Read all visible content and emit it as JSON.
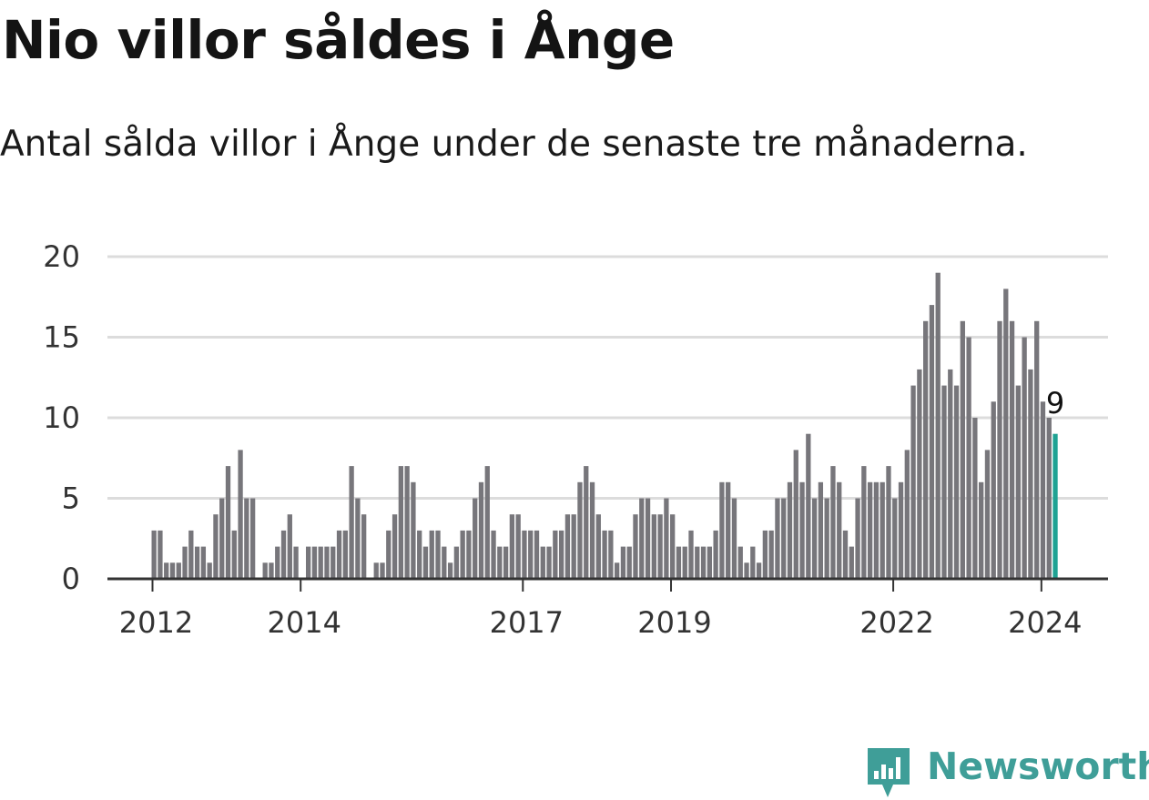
{
  "title": "Nio villor såldes i Ånge",
  "subtitle": "Antal sålda villor i Ånge under de senaste tre månaderna.",
  "brand": {
    "name": "Newsworthy",
    "color": "#3f9e98",
    "icon": "newsworthy-logo-icon"
  },
  "colors": {
    "bar": "#77767b",
    "highlight": "#1fa293",
    "grid": "#dcdcdc",
    "axis": "#333333"
  },
  "chart_data": {
    "type": "bar",
    "x_tick_labels": [
      "2012",
      "2014",
      "2017",
      "2019",
      "2022",
      "2024"
    ],
    "y_ticks": [
      0,
      5,
      10,
      15,
      20
    ],
    "ylim": [
      0,
      20
    ],
    "grid": true,
    "highlight_label": "9",
    "series": [
      {
        "values": [
          3,
          3,
          1,
          1,
          1,
          2,
          3,
          2,
          2,
          1,
          4,
          5,
          7,
          3,
          8,
          5,
          5,
          0,
          1,
          1,
          2,
          3,
          4,
          2,
          0,
          2,
          2,
          2,
          2,
          2,
          3,
          3,
          7,
          5,
          4,
          0,
          1,
          1,
          3,
          4,
          7,
          7,
          6,
          3,
          2,
          3,
          3,
          2,
          1,
          2,
          3,
          3,
          5,
          6,
          7,
          3,
          2,
          2,
          4,
          4,
          3,
          3,
          3,
          2,
          2,
          3,
          3,
          4,
          4,
          6,
          7,
          6,
          4,
          3,
          3,
          1,
          2,
          2,
          4,
          5,
          5,
          4,
          4,
          5,
          4,
          2,
          2,
          3,
          2,
          2,
          2,
          3,
          6,
          6,
          5,
          2,
          1,
          2,
          1,
          3,
          3,
          5,
          5,
          6,
          8,
          6,
          9,
          5,
          6,
          5,
          7,
          6,
          3,
          2,
          5,
          7,
          6,
          6,
          6,
          7,
          5,
          6,
          8,
          12,
          13,
          16,
          17,
          19,
          12,
          13,
          12,
          16,
          15,
          10,
          6,
          8,
          11,
          16,
          18,
          16,
          12,
          15,
          13,
          16,
          11,
          10,
          9
        ]
      }
    ]
  }
}
